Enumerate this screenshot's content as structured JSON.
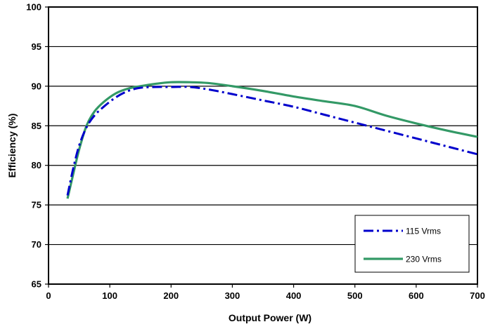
{
  "chart_data": {
    "type": "line",
    "title": "",
    "xlabel": "Output Power (W)",
    "ylabel": "Efficiency (%)",
    "xlim": [
      0,
      700
    ],
    "ylim": [
      65,
      100
    ],
    "x_ticks": [
      0,
      100,
      200,
      300,
      400,
      500,
      600,
      700
    ],
    "y_ticks": [
      65,
      70,
      75,
      80,
      85,
      90,
      95,
      100
    ],
    "x_tick_labels": [
      "0",
      "100",
      "200",
      "300",
      "400",
      "500",
      "600",
      "700"
    ],
    "y_tick_labels": [
      "65",
      "70",
      "75",
      "80",
      "85",
      "90",
      "95",
      "100"
    ],
    "grid": "horizontal",
    "legend_position": "bottom-right",
    "series": [
      {
        "name": "115 Vrms",
        "color": "#0000CC",
        "style": "dash-dot",
        "x": [
          31,
          40,
          50,
          62,
          75,
          90,
          110,
          130,
          150,
          175,
          200,
          230,
          260,
          300,
          350,
          400,
          450,
          500,
          550,
          600,
          650,
          700
        ],
        "y": [
          76.2,
          79.5,
          82.5,
          84.8,
          86.3,
          87.4,
          88.6,
          89.4,
          89.8,
          89.9,
          89.9,
          89.9,
          89.6,
          89.0,
          88.2,
          87.4,
          86.4,
          85.4,
          84.4,
          83.4,
          82.4,
          81.4
        ]
      },
      {
        "name": "230 Vrms",
        "color": "#339966",
        "style": "solid",
        "x": [
          31,
          40,
          50,
          62,
          75,
          90,
          110,
          130,
          150,
          175,
          200,
          230,
          260,
          300,
          350,
          400,
          450,
          500,
          550,
          600,
          650,
          700
        ],
        "y": [
          75.8,
          78.8,
          82.0,
          85.0,
          86.8,
          88.0,
          89.1,
          89.7,
          90.0,
          90.3,
          90.5,
          90.5,
          90.4,
          90.0,
          89.4,
          88.7,
          88.1,
          87.5,
          86.3,
          85.3,
          84.4,
          83.6
        ]
      }
    ]
  }
}
